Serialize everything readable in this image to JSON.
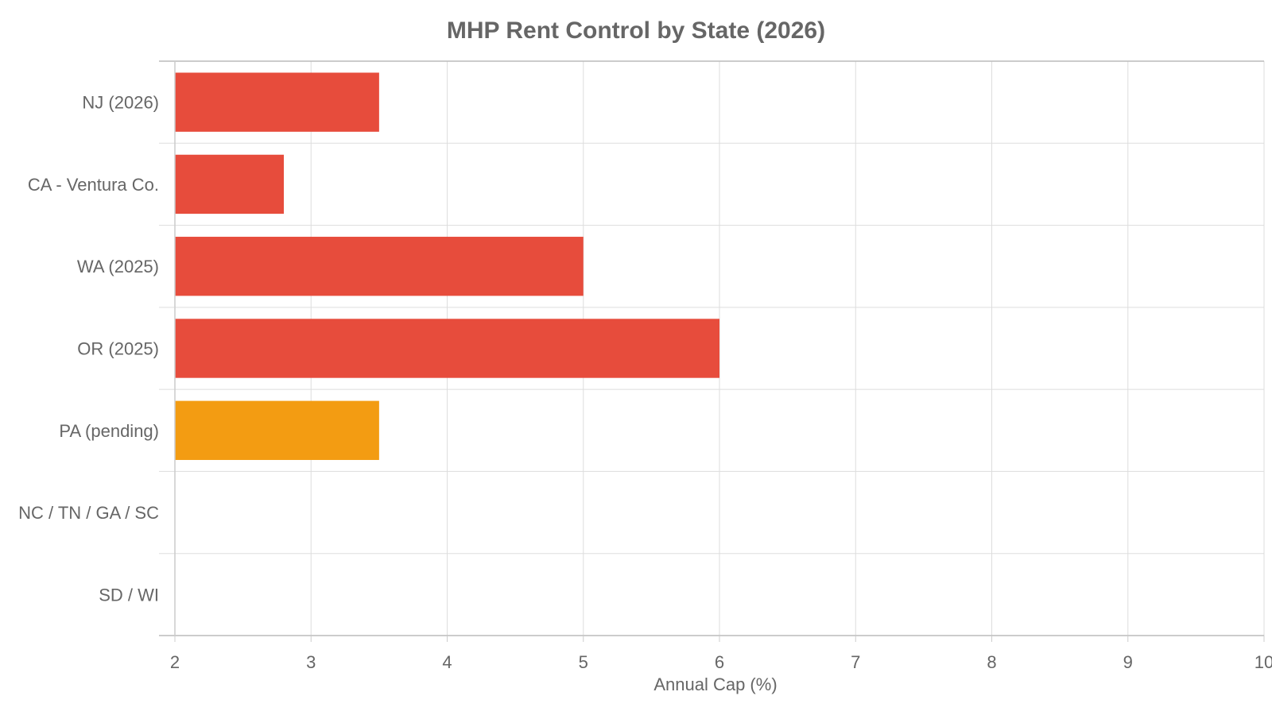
{
  "chart_data": {
    "type": "bar",
    "orientation": "horizontal",
    "title": "MHP Rent Control by State (2026)",
    "xlabel": "Annual Cap (%)",
    "ylabel": "",
    "xlim": [
      2,
      10
    ],
    "x_ticks": [
      "2",
      "3",
      "4",
      "5",
      "6",
      "7",
      "8",
      "9",
      "10"
    ],
    "grid": true,
    "legend": "none",
    "categories": [
      "NJ (2026)",
      "CA - Ventura Co.",
      "WA (2025)",
      "OR (2025)",
      "PA (pending)",
      "NC / TN / GA / SC",
      "SD / WI"
    ],
    "values": [
      3.5,
      2.8,
      5,
      6,
      3.5,
      null,
      null
    ],
    "bar_colors": [
      "#e74c3c",
      "#e74c3c",
      "#e74c3c",
      "#e74c3c",
      "#f39c12",
      null,
      null
    ]
  }
}
